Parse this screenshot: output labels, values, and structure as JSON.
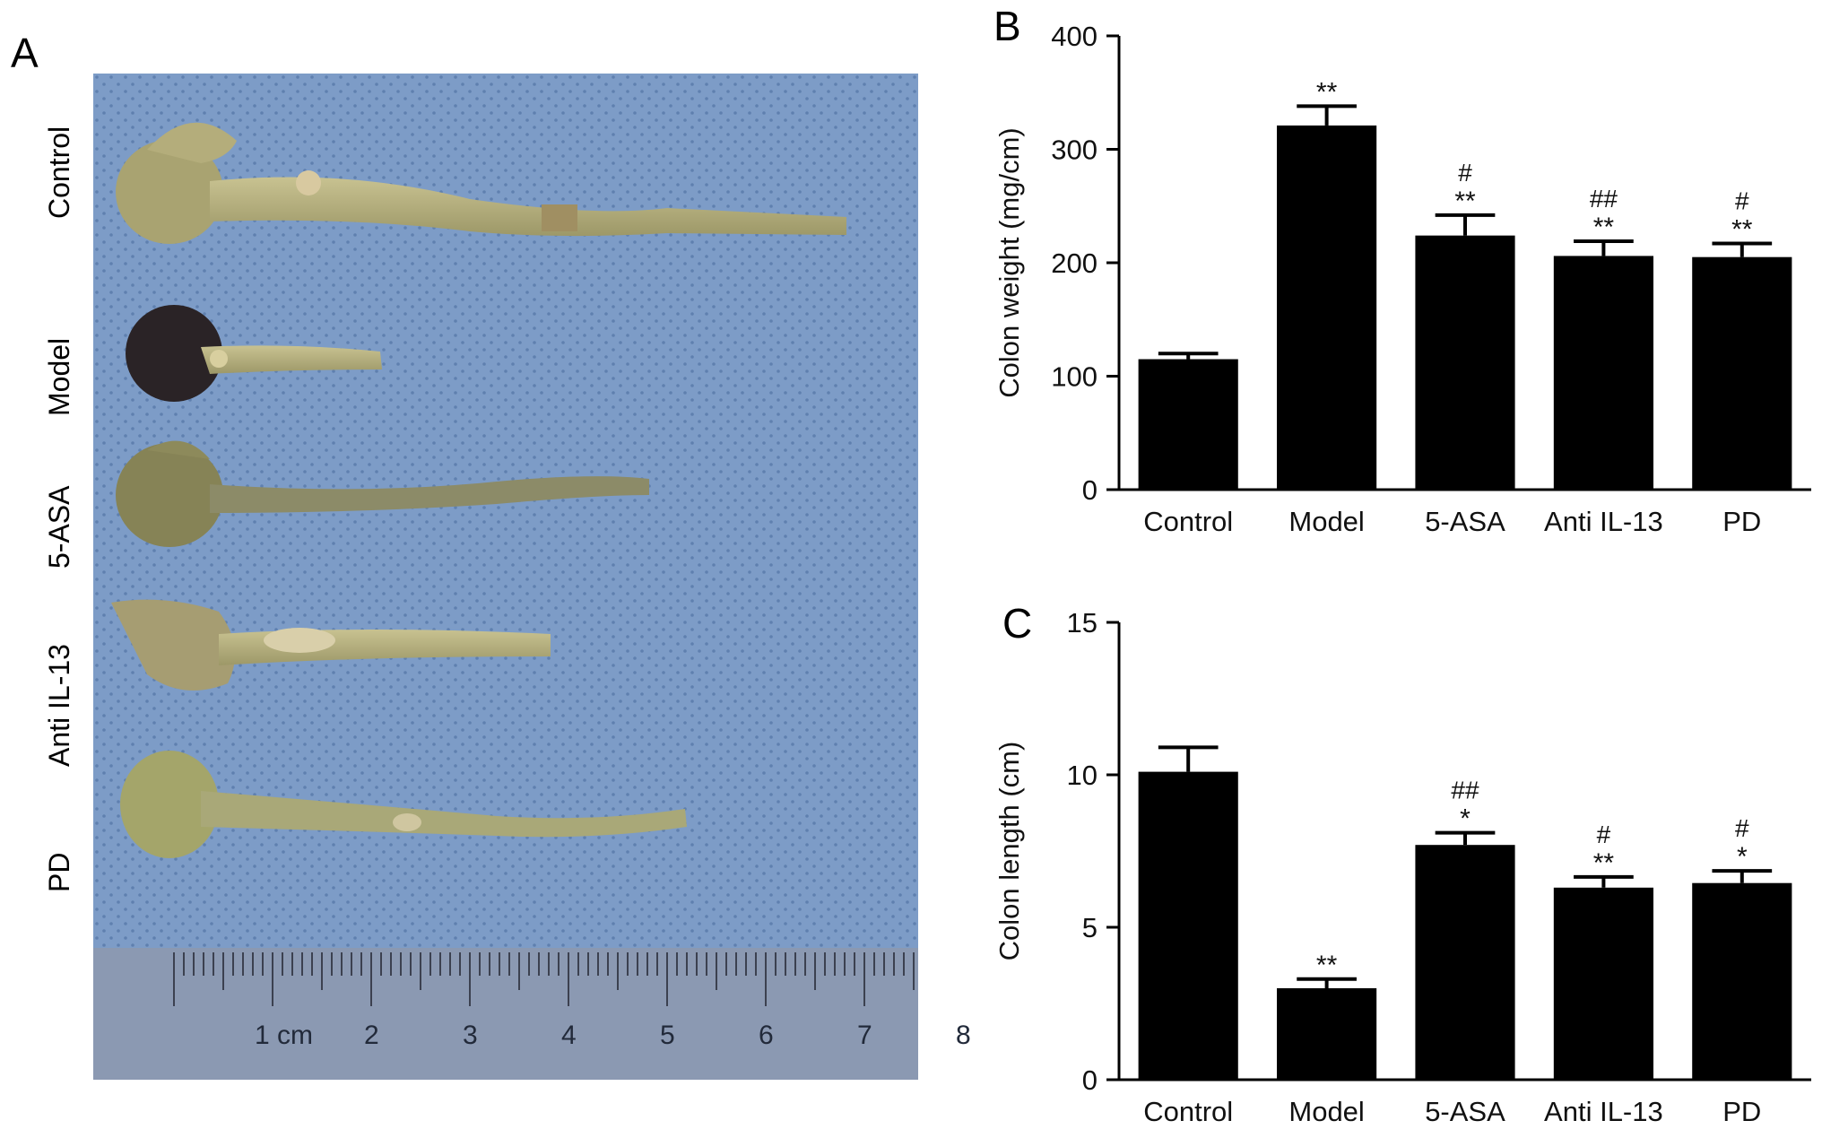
{
  "panels": {
    "a_letter": "A",
    "b_letter": "B",
    "c_letter": "C"
  },
  "photo": {
    "samples": [
      "Control",
      "Model",
      "5-ASA",
      "Anti IL-13",
      "PD"
    ],
    "ruler_labels": [
      "1 cm",
      "2",
      "3",
      "4",
      "5",
      "6",
      "7",
      "8"
    ],
    "background_color": "#7d9cc7",
    "tissue_color": "#b3ad7c",
    "model_tissue_color": "#2a2326"
  },
  "chart_data": [
    {
      "type": "bar",
      "panel": "B",
      "title": "",
      "xlabel": "",
      "ylabel": "Colon weight (mg/cm)",
      "ylim": [
        0,
        400
      ],
      "yticks": [
        0,
        100,
        200,
        300,
        400
      ],
      "categories": [
        "Control",
        "Model",
        "5-ASA",
        "Anti IL-13",
        "PD"
      ],
      "values": [
        115,
        321,
        224,
        206,
        205
      ],
      "errors": [
        5,
        17,
        18,
        13,
        12
      ],
      "significance": [
        "",
        "**",
        "**",
        "**",
        "**"
      ],
      "significance_hash": [
        "",
        "",
        "#",
        "##",
        "#"
      ],
      "bar_color": "#000000",
      "grid": false
    },
    {
      "type": "bar",
      "panel": "C",
      "title": "",
      "xlabel": "",
      "ylabel": "Colon length (cm)",
      "ylim": [
        0,
        15
      ],
      "yticks": [
        0,
        5,
        10,
        15
      ],
      "categories": [
        "Control",
        "Model",
        "5-ASA",
        "Anti IL-13",
        "PD"
      ],
      "values": [
        10.1,
        3.0,
        7.7,
        6.3,
        6.45
      ],
      "errors": [
        0.8,
        0.3,
        0.4,
        0.35,
        0.4
      ],
      "significance": [
        "",
        "**",
        "*",
        "**",
        "*"
      ],
      "significance_hash": [
        "",
        "",
        "##",
        "#",
        "#"
      ],
      "bar_color": "#000000",
      "grid": false
    }
  ]
}
